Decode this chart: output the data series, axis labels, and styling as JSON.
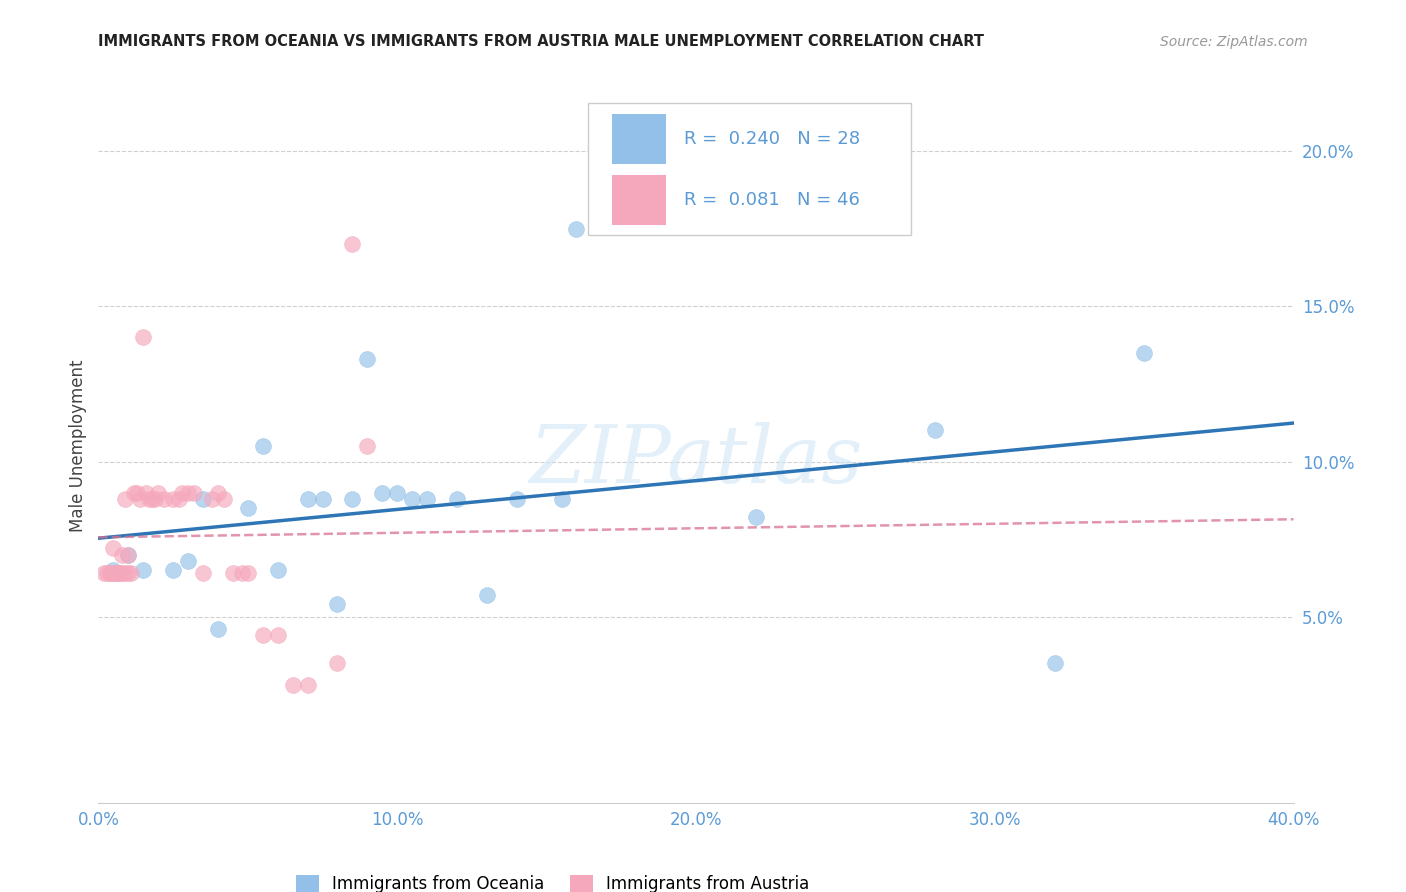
{
  "title": "IMMIGRANTS FROM OCEANIA VS IMMIGRANTS FROM AUSTRIA MALE UNEMPLOYMENT CORRELATION CHART",
  "source": "Source: ZipAtlas.com",
  "tick_color": "#5b9bd5",
  "ylabel": "Male Unemployment",
  "xlim": [
    0.0,
    0.4
  ],
  "ylim": [
    -0.01,
    0.22
  ],
  "plot_ylim": [
    0.0,
    0.22
  ],
  "xticks": [
    0.0,
    0.1,
    0.2,
    0.3,
    0.4
  ],
  "yticks": [
    0.05,
    0.1,
    0.15,
    0.2
  ],
  "xtick_labels": [
    "0.0%",
    "10.0%",
    "20.0%",
    "30.0%",
    "40.0%"
  ],
  "ytick_labels": [
    "5.0%",
    "10.0%",
    "15.0%",
    "20.0%"
  ],
  "legend_R1": "0.240",
  "legend_N1": "28",
  "legend_R2": "0.081",
  "legend_N2": "46",
  "oceania_color": "#92c0e8",
  "austria_color": "#f5a8bc",
  "trend_oceania_color": "#2e75b6",
  "trend_austria_color": "#d87090",
  "watermark": "ZIPatlas",
  "oceania_x": [
    0.005,
    0.01,
    0.015,
    0.025,
    0.03,
    0.035,
    0.04,
    0.05,
    0.055,
    0.06,
    0.07,
    0.075,
    0.08,
    0.085,
    0.09,
    0.095,
    0.1,
    0.105,
    0.11,
    0.12,
    0.13,
    0.14,
    0.155,
    0.16,
    0.22,
    0.28,
    0.32,
    0.35
  ],
  "oceania_y": [
    0.065,
    0.07,
    0.065,
    0.065,
    0.068,
    0.088,
    0.046,
    0.085,
    0.105,
    0.065,
    0.088,
    0.088,
    0.054,
    0.088,
    0.133,
    0.09,
    0.09,
    0.088,
    0.088,
    0.088,
    0.057,
    0.088,
    0.088,
    0.175,
    0.082,
    0.11,
    0.035,
    0.135
  ],
  "austria_x": [
    0.002,
    0.003,
    0.004,
    0.004,
    0.005,
    0.005,
    0.006,
    0.006,
    0.007,
    0.007,
    0.008,
    0.008,
    0.009,
    0.009,
    0.01,
    0.01,
    0.011,
    0.012,
    0.013,
    0.014,
    0.015,
    0.016,
    0.017,
    0.018,
    0.019,
    0.02,
    0.022,
    0.025,
    0.027,
    0.028,
    0.03,
    0.032,
    0.035,
    0.038,
    0.04,
    0.042,
    0.045,
    0.048,
    0.05,
    0.055,
    0.06,
    0.065,
    0.07,
    0.08,
    0.085,
    0.09
  ],
  "austria_y": [
    0.064,
    0.064,
    0.064,
    0.064,
    0.072,
    0.064,
    0.064,
    0.064,
    0.064,
    0.064,
    0.064,
    0.07,
    0.064,
    0.088,
    0.064,
    0.07,
    0.064,
    0.09,
    0.09,
    0.088,
    0.14,
    0.09,
    0.088,
    0.088,
    0.088,
    0.09,
    0.088,
    0.088,
    0.088,
    0.09,
    0.09,
    0.09,
    0.064,
    0.088,
    0.09,
    0.088,
    0.064,
    0.064,
    0.064,
    0.044,
    0.044,
    0.028,
    0.028,
    0.035,
    0.17,
    0.105
  ]
}
